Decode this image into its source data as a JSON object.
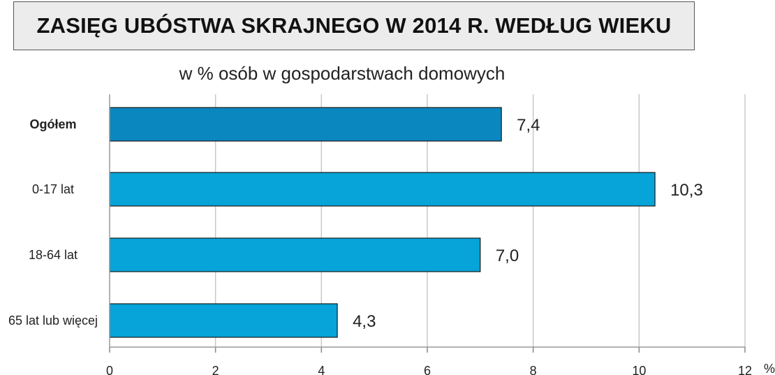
{
  "chart_data": {
    "type": "bar",
    "orientation": "horizontal",
    "title": "ZASIĘG UBÓSTWA SKRAJNEGO W 2014 R. WEDŁUG WIEKU",
    "subtitle": "w % osób w gospodarstwach domowych",
    "categories": [
      "Ogółem",
      "0-17 lat",
      "18-64 lat",
      "65 lat lub więcej"
    ],
    "values": [
      7.4,
      10.3,
      7.0,
      4.3
    ],
    "value_labels": [
      "7,4",
      "10,3",
      "7,0",
      "4,3"
    ],
    "bold_categories": [
      true,
      false,
      false,
      false
    ],
    "bar_colors": [
      "#0a87bf",
      "#06a4d8",
      "#06a4d8",
      "#06a4d8"
    ],
    "xlim": [
      0,
      12
    ],
    "xticks": [
      0,
      2,
      4,
      6,
      8,
      10,
      12
    ],
    "xtick_labels": [
      "0",
      "2",
      "4",
      "6",
      "8",
      "10",
      "12"
    ],
    "x_unit": "%",
    "grid": true,
    "grid_color": "#c8c8c8"
  }
}
